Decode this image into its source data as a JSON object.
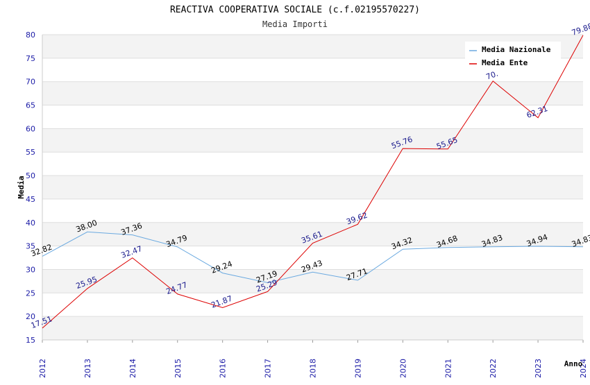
{
  "chart_data": {
    "type": "line",
    "title": "REACTIVA COOPERATIVA SOCIALE (c.f.02195570227)",
    "subtitle": "Media Importi",
    "xlabel": "Anno",
    "ylabel": "Media",
    "ylim": [
      15,
      80
    ],
    "yticks": [
      15,
      20,
      25,
      30,
      35,
      40,
      45,
      50,
      55,
      60,
      65,
      70,
      75,
      80
    ],
    "categories": [
      "2012",
      "2013",
      "2014",
      "2015",
      "2016",
      "2017",
      "2018",
      "2019",
      "2020",
      "2021",
      "2022",
      "2023",
      "2024"
    ],
    "legend_position": "top-right",
    "series": [
      {
        "name": "Media Nazionale",
        "color": "#6aa9e0",
        "label_color": "#000000",
        "values": [
          32.82,
          38.0,
          37.36,
          34.79,
          29.24,
          27.19,
          29.43,
          27.71,
          34.32,
          34.68,
          34.83,
          34.94,
          34.83
        ],
        "labels": [
          "32.82",
          "38.00",
          "37.36",
          "34.79",
          "29.24",
          "27.19",
          "29.43",
          "27.71",
          "34.32",
          "34.68",
          "34.83",
          "34.94",
          "34.83"
        ]
      },
      {
        "name": "Media Ente",
        "color": "#dd0000",
        "label_color": "#1a1a8c",
        "values": [
          17.51,
          25.95,
          32.47,
          24.77,
          21.87,
          25.29,
          35.61,
          39.62,
          55.76,
          55.65,
          70.11,
          62.31,
          79.88
        ],
        "labels": [
          "17.51",
          "25.95",
          "32.47",
          "24.77",
          "21.87",
          "25.29",
          "35.61",
          "39.62",
          "55.76",
          "55.65",
          "70.",
          "62.31",
          "79.88"
        ]
      }
    ]
  }
}
